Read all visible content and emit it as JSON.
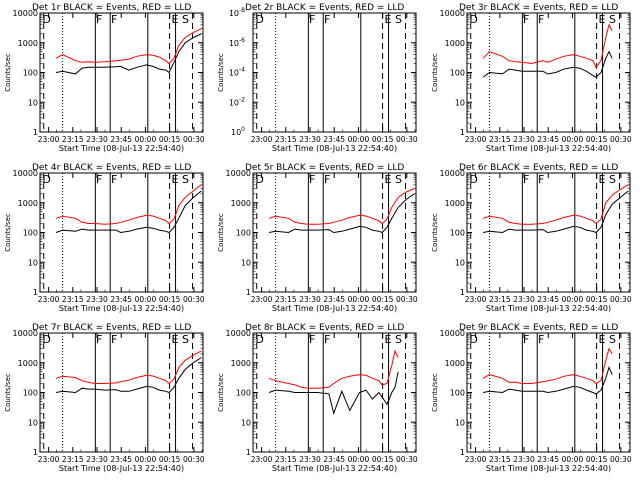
{
  "layout": {
    "rows": 3,
    "cols": 3
  },
  "legend_text": "BLACK = Events, RED = LLD",
  "xlabel": "Start Time (08-Jul-13 22:54:40)",
  "ylabel": "Counts/sec",
  "x_ticks": [
    "23:00",
    "23:15",
    "23:30",
    "23:45",
    "00:00",
    "00:15",
    "00:30"
  ],
  "x_tick_minutes": [
    5.33,
    20.33,
    35.33,
    50.33,
    65.33,
    80.33,
    95.33
  ],
  "x_range_minutes": [
    0,
    101
  ],
  "y_ticks_log": [
    "1",
    "10",
    "100",
    "1000",
    "10000"
  ],
  "y_ticks_small": [
    "10^0",
    "10^-2",
    "10^-4",
    "10^-6",
    "10^-8"
  ],
  "colors": {
    "events": "#000000",
    "lld": "#ff0000",
    "axis": "#000000"
  },
  "markers": {
    "dashed": [
      2.3,
      80.3,
      94.5
    ],
    "dotted": [
      14.0
    ],
    "solid": [
      34.3,
      43.5,
      66.8,
      84.0
    ],
    "letters": [
      {
        "text": "D",
        "x": 1.5
      },
      {
        "text": "F",
        "x": 34.7
      },
      {
        "text": "F",
        "x": 44.0
      },
      {
        "text": "E",
        "x": 81.5
      },
      {
        "text": "S",
        "x": 88.0
      }
    ]
  },
  "chart_data": [
    {
      "type": "line",
      "title": "Det 1r",
      "empty": false,
      "ylim": [
        1,
        10000
      ],
      "yscale": "log",
      "series": [
        {
          "name": "Events",
          "x": [
            10,
            14,
            22,
            26,
            30,
            34,
            40,
            47,
            50,
            55,
            60,
            66,
            70,
            74,
            78,
            80,
            83,
            86,
            90,
            95,
            100
          ],
          "values": [
            100,
            110,
            90,
            140,
            150,
            150,
            150,
            155,
            160,
            120,
            150,
            180,
            160,
            130,
            120,
            100,
            220,
            500,
            1000,
            1500,
            2000
          ]
        },
        {
          "name": "LLD",
          "x": [
            10,
            14,
            22,
            26,
            30,
            34,
            40,
            47,
            50,
            55,
            60,
            66,
            70,
            74,
            78,
            80,
            83,
            86,
            90,
            95,
            100
          ],
          "values": [
            300,
            400,
            250,
            220,
            230,
            220,
            230,
            250,
            260,
            280,
            350,
            400,
            380,
            330,
            250,
            200,
            300,
            800,
            1500,
            2200,
            3000
          ]
        }
      ]
    },
    {
      "type": "line",
      "title": "Det 2r",
      "empty": true,
      "ylim": [
        1e-08,
        1
      ],
      "yscale": "log",
      "series": []
    },
    {
      "type": "line",
      "title": "Det 3r",
      "empty": false,
      "ylim": [
        1,
        10000
      ],
      "yscale": "log",
      "series": [
        {
          "name": "Events",
          "x": [
            10,
            14,
            22,
            26,
            30,
            34,
            40,
            47,
            50,
            55,
            60,
            66,
            70,
            74,
            78,
            80,
            83,
            86,
            88,
            90
          ],
          "values": [
            70,
            100,
            90,
            130,
            120,
            110,
            110,
            110,
            90,
            100,
            130,
            150,
            140,
            110,
            80,
            70,
            100,
            300,
            500,
            300
          ]
        },
        {
          "name": "LLD",
          "x": [
            10,
            14,
            22,
            26,
            30,
            34,
            40,
            47,
            50,
            55,
            60,
            66,
            70,
            74,
            78,
            80,
            83,
            86,
            88,
            90
          ],
          "values": [
            300,
            500,
            350,
            250,
            230,
            220,
            200,
            250,
            220,
            280,
            350,
            400,
            350,
            300,
            250,
            150,
            250,
            1500,
            4000,
            2500
          ]
        }
      ]
    },
    {
      "type": "line",
      "title": "Det 4r",
      "empty": false,
      "ylim": [
        1,
        10000
      ],
      "yscale": "log",
      "series": [
        {
          "name": "Events",
          "x": [
            10,
            14,
            22,
            26,
            30,
            34,
            40,
            47,
            50,
            55,
            60,
            66,
            70,
            74,
            78,
            80,
            83,
            86,
            90,
            95,
            100
          ],
          "values": [
            100,
            120,
            110,
            130,
            120,
            120,
            120,
            120,
            100,
            110,
            130,
            150,
            140,
            120,
            110,
            100,
            150,
            300,
            800,
            1500,
            2500
          ]
        },
        {
          "name": "LLD",
          "x": [
            10,
            14,
            22,
            26,
            30,
            34,
            40,
            47,
            50,
            55,
            60,
            66,
            70,
            74,
            78,
            80,
            83,
            86,
            90,
            95,
            100
          ],
          "values": [
            300,
            350,
            300,
            220,
            200,
            200,
            190,
            200,
            220,
            260,
            320,
            380,
            360,
            300,
            250,
            200,
            280,
            800,
            1500,
            2500,
            4000
          ]
        }
      ]
    },
    {
      "type": "line",
      "title": "Det 5r",
      "empty": false,
      "ylim": [
        1,
        10000
      ],
      "yscale": "log",
      "series": [
        {
          "name": "Events",
          "x": [
            10,
            14,
            22,
            26,
            30,
            34,
            40,
            47,
            50,
            55,
            60,
            66,
            70,
            74,
            78,
            80,
            83,
            86,
            90,
            95,
            100
          ],
          "values": [
            100,
            110,
            100,
            130,
            120,
            120,
            120,
            125,
            100,
            110,
            130,
            160,
            150,
            120,
            110,
            100,
            150,
            300,
            700,
            1300,
            2000
          ]
        },
        {
          "name": "LLD",
          "x": [
            10,
            14,
            22,
            26,
            30,
            34,
            40,
            47,
            50,
            55,
            60,
            66,
            70,
            74,
            78,
            80,
            83,
            86,
            90,
            95,
            100
          ],
          "values": [
            300,
            350,
            300,
            220,
            200,
            190,
            190,
            200,
            220,
            260,
            320,
            380,
            360,
            300,
            250,
            200,
            280,
            700,
            1500,
            2300,
            3000
          ]
        }
      ]
    },
    {
      "type": "line",
      "title": "Det 6r",
      "empty": false,
      "ylim": [
        1,
        10000
      ],
      "yscale": "log",
      "series": [
        {
          "name": "Events",
          "x": [
            10,
            14,
            22,
            26,
            30,
            34,
            40,
            47,
            50,
            55,
            60,
            66,
            70,
            74,
            78,
            80,
            83,
            86,
            90,
            95,
            100
          ],
          "values": [
            100,
            110,
            100,
            130,
            120,
            120,
            120,
            125,
            100,
            110,
            130,
            160,
            150,
            120,
            110,
            100,
            150,
            400,
            900,
            1500,
            2500
          ]
        },
        {
          "name": "LLD",
          "x": [
            10,
            14,
            22,
            26,
            30,
            34,
            40,
            47,
            50,
            55,
            60,
            66,
            70,
            74,
            78,
            80,
            83,
            86,
            90,
            95,
            100
          ],
          "values": [
            300,
            350,
            300,
            220,
            200,
            190,
            190,
            200,
            220,
            260,
            320,
            380,
            360,
            300,
            250,
            200,
            280,
            1000,
            1800,
            2800,
            4000
          ]
        }
      ]
    },
    {
      "type": "line",
      "title": "Det 7r",
      "empty": false,
      "ylim": [
        1,
        10000
      ],
      "yscale": "log",
      "series": [
        {
          "name": "Events",
          "x": [
            10,
            14,
            22,
            26,
            30,
            34,
            40,
            47,
            50,
            55,
            60,
            66,
            70,
            74,
            78,
            80,
            83,
            86,
            90,
            95,
            100
          ],
          "values": [
            100,
            110,
            100,
            140,
            130,
            130,
            120,
            125,
            110,
            110,
            130,
            160,
            150,
            120,
            110,
            100,
            150,
            300,
            600,
            1000,
            1500
          ]
        },
        {
          "name": "LLD",
          "x": [
            10,
            14,
            22,
            26,
            30,
            34,
            40,
            47,
            50,
            55,
            60,
            66,
            70,
            74,
            78,
            80,
            83,
            86,
            90,
            95,
            100
          ],
          "values": [
            300,
            350,
            320,
            250,
            220,
            200,
            200,
            210,
            230,
            260,
            320,
            380,
            360,
            300,
            250,
            200,
            280,
            700,
            1200,
            1800,
            2500
          ]
        }
      ]
    },
    {
      "type": "line",
      "title": "Det 8r",
      "empty": false,
      "ylim": [
        1,
        10000
      ],
      "yscale": "log",
      "series": [
        {
          "name": "Events",
          "x": [
            10,
            14,
            22,
            26,
            30,
            34,
            40,
            47,
            50,
            55,
            60,
            66,
            70,
            74,
            78,
            80,
            83,
            86,
            88,
            90
          ],
          "values": [
            100,
            120,
            110,
            100,
            100,
            100,
            100,
            90,
            20,
            110,
            25,
            100,
            120,
            60,
            100,
            70,
            40,
            100,
            150,
            500
          ]
        },
        {
          "name": "LLD",
          "x": [
            10,
            14,
            22,
            26,
            30,
            34,
            40,
            47,
            50,
            55,
            60,
            66,
            70,
            74,
            78,
            80,
            83,
            86,
            88,
            90
          ],
          "values": [
            300,
            250,
            200,
            180,
            150,
            140,
            140,
            150,
            200,
            300,
            350,
            400,
            380,
            300,
            250,
            180,
            200,
            800,
            2500,
            1500
          ]
        }
      ]
    },
    {
      "type": "line",
      "title": "Det 9r",
      "empty": false,
      "ylim": [
        1,
        10000
      ],
      "yscale": "log",
      "series": [
        {
          "name": "Events",
          "x": [
            10,
            14,
            22,
            26,
            30,
            34,
            40,
            47,
            50,
            55,
            60,
            66,
            70,
            74,
            78,
            80,
            83,
            86,
            88,
            90
          ],
          "values": [
            100,
            110,
            100,
            130,
            120,
            110,
            110,
            110,
            100,
            110,
            130,
            160,
            150,
            120,
            100,
            90,
            120,
            300,
            700,
            400
          ]
        },
        {
          "name": "LLD",
          "x": [
            10,
            14,
            22,
            26,
            30,
            34,
            40,
            47,
            50,
            55,
            60,
            66,
            70,
            74,
            78,
            80,
            83,
            86,
            88,
            90
          ],
          "values": [
            300,
            400,
            300,
            220,
            220,
            200,
            200,
            230,
            250,
            280,
            350,
            400,
            350,
            300,
            250,
            200,
            250,
            1200,
            3000,
            2000
          ]
        }
      ]
    }
  ]
}
